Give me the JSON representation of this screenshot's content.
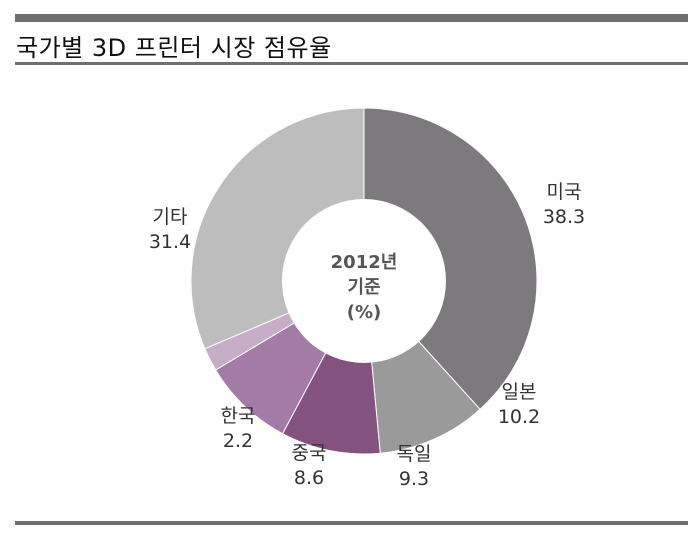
{
  "title": "국가별 3D 프린터 시장 점유율",
  "chart_data": {
    "type": "pie",
    "donut": true,
    "center_text": [
      "2012년",
      "기준",
      "(%)"
    ],
    "categories": [
      "미국",
      "일본",
      "독일",
      "중국",
      "한국",
      "기타"
    ],
    "values": [
      38.3,
      10.2,
      9.3,
      8.6,
      2.2,
      31.4
    ],
    "value_labels": [
      "38.3",
      "10.2",
      "9.3",
      "8.6",
      "2.2",
      "31.4"
    ],
    "colors": [
      "#7d7a7e",
      "#9a9a9a",
      "#84527f",
      "#a47aa6",
      "#c7adc8",
      "#bdbdbd"
    ]
  }
}
